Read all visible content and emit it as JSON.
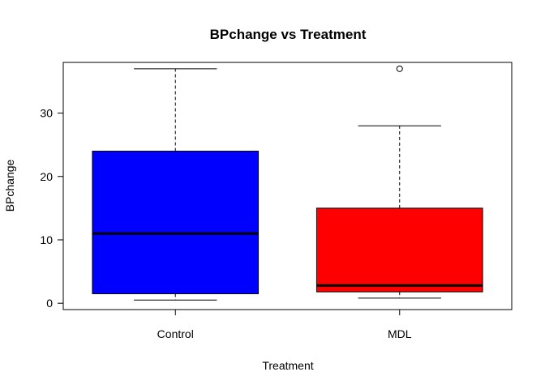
{
  "chart_data": {
    "type": "boxplot",
    "title": "BPchange vs Treatment",
    "xlabel": "Treatment",
    "ylabel": "BPchange",
    "categories": [
      "Control",
      "MDL"
    ],
    "ylim": [
      -1,
      38
    ],
    "yticks": [
      "0",
      "10",
      "20",
      "30"
    ],
    "grid": false,
    "legend": "none",
    "boxes": [
      {
        "category": "Control",
        "color": "#0000FF",
        "min": 0.5,
        "q1": 1.5,
        "median": 11,
        "q3": 24,
        "max": 37,
        "outliers": []
      },
      {
        "category": "MDL",
        "color": "#FF0000",
        "min": 0.8,
        "q1": 1.8,
        "median": 2.8,
        "q3": 15,
        "max": 28,
        "outliers": [
          37
        ]
      }
    ]
  }
}
